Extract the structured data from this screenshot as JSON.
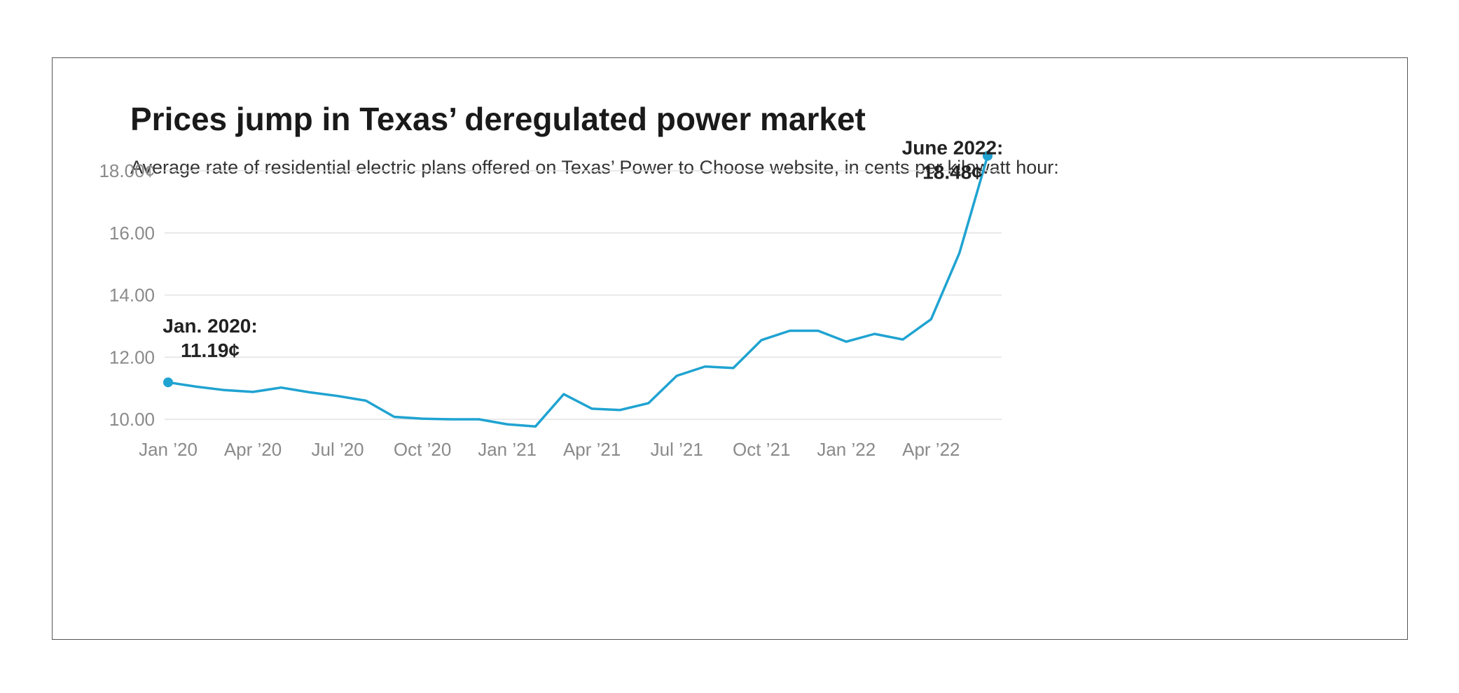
{
  "colors": {
    "line": "#1fa3d1",
    "grid": "#e2e2e2",
    "tick_text": "#8a8a8a",
    "title": "#1a1a1a",
    "frame_border": "#555555"
  },
  "chart_data": {
    "type": "line",
    "title": "Prices jump in Texas’ deregulated power market",
    "subtitle": "Average rate of residential electric plans offered on Texas’ Power to Choose website, in cents per kilowatt hour:",
    "xlabel": "",
    "ylabel": "",
    "ylim": [
      10,
      18.8
    ],
    "grid": true,
    "y_ticks": [
      {
        "value": 18,
        "label": "18.00¢"
      },
      {
        "value": 16,
        "label": "16.00"
      },
      {
        "value": 14,
        "label": "14.00"
      },
      {
        "value": 12,
        "label": "12.00"
      },
      {
        "value": 10,
        "label": "10.00"
      }
    ],
    "x_ticks": [
      {
        "date": "2020-01",
        "label": "Jan ’20"
      },
      {
        "date": "2020-04",
        "label": "Apr ’20"
      },
      {
        "date": "2020-07",
        "label": "Jul ’20"
      },
      {
        "date": "2020-10",
        "label": "Oct ’20"
      },
      {
        "date": "2021-01",
        "label": "Jan ’21"
      },
      {
        "date": "2021-04",
        "label": "Apr ’21"
      },
      {
        "date": "2021-07",
        "label": "Jul ’21"
      },
      {
        "date": "2021-10",
        "label": "Oct ’21"
      },
      {
        "date": "2022-01",
        "label": "Jan ’22"
      },
      {
        "date": "2022-04",
        "label": "Apr ’22"
      }
    ],
    "series": [
      {
        "x": [
          "2020-01",
          "2020-02",
          "2020-03",
          "2020-04",
          "2020-05",
          "2020-06",
          "2020-07",
          "2020-08",
          "2020-09",
          "2020-10",
          "2020-11",
          "2020-12",
          "2021-01",
          "2021-02",
          "2021-03",
          "2021-04",
          "2021-05",
          "2021-06",
          "2021-07",
          "2021-08",
          "2021-09",
          "2021-10",
          "2021-11",
          "2021-12",
          "2022-01",
          "2022-02",
          "2022-03",
          "2022-04",
          "2022-05",
          "2022-06"
        ],
        "values": [
          11.19,
          11.05,
          10.94,
          10.88,
          11.02,
          10.87,
          10.75,
          10.6,
          10.08,
          10.02,
          10.0,
          10.0,
          9.84,
          9.77,
          10.81,
          10.34,
          10.3,
          10.52,
          11.4,
          11.7,
          11.65,
          12.55,
          12.85,
          12.85,
          12.5,
          12.75,
          12.57,
          13.22,
          15.35,
          18.48
        ]
      }
    ],
    "annotations": [
      {
        "date": "2020-01",
        "value": 11.19,
        "lines": [
          "Jan. 2020:",
          "11.19¢"
        ]
      },
      {
        "date": "2022-06",
        "value": 18.48,
        "lines": [
          "June 2022:",
          "18.48¢"
        ]
      }
    ]
  }
}
